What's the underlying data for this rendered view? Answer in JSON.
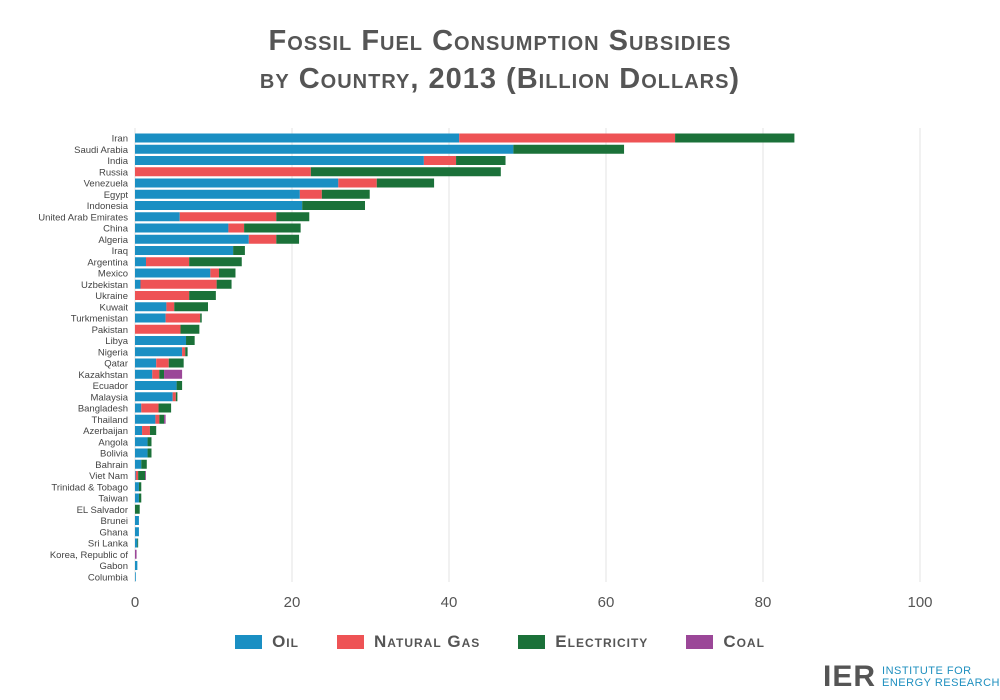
{
  "title": {
    "line1": "Fossil Fuel Consumption Subsidies",
    "line2": "by Country, 2013 (Billion Dollars)"
  },
  "legend": [
    {
      "name": "Oil",
      "color": "#1a8fc3"
    },
    {
      "name": "Natural Gas",
      "color": "#ee5355"
    },
    {
      "name": "Electricity",
      "color": "#1b7139"
    },
    {
      "name": "Coal",
      "color": "#9b4798"
    }
  ],
  "logo": {
    "mark": "IER",
    "line1": "INSTITUTE FOR",
    "line2": "ENERGY RESEARCH"
  },
  "chart_data": {
    "type": "bar",
    "orientation": "horizontal",
    "stacked": true,
    "title": "Fossil Fuel Consumption Subsidies by Country, 2013 (Billion Dollars)",
    "xlim": [
      0,
      100
    ],
    "xticks": [
      0,
      20,
      40,
      60,
      80,
      100
    ],
    "grid": true,
    "legend_position": "bottom",
    "categories": [
      "Iran",
      "Saudi Arabia",
      "India",
      "Russia",
      "Venezuela",
      "Egypt",
      "Indonesia",
      "United Arab Emirates",
      "China",
      "Algeria",
      "Iraq",
      "Argentina",
      "Mexico",
      "Uzbekistan",
      "Ukraine",
      "Kuwait",
      "Turkmenistan",
      "Pakistan",
      "Libya",
      "Nigeria",
      "Qatar",
      "Kazakhstan",
      "Ecuador",
      "Malaysia",
      "Bangladesh",
      "Thailand",
      "Azerbaijan",
      "Angola",
      "Bolivia",
      "Bahrain",
      "Viet Nam",
      "Trinidad & Tobago",
      "Taiwan",
      "EL Salvador",
      "Brunei",
      "Ghana",
      "Sri Lanka",
      "Korea, Republic of",
      "Gabon",
      "Columbia"
    ],
    "series": [
      {
        "name": "Oil",
        "color": "#1a8fc3",
        "values": [
          41.3,
          48.2,
          36.8,
          0,
          25.9,
          21.0,
          21.3,
          5.7,
          11.9,
          14.5,
          12.5,
          1.4,
          9.6,
          0.7,
          0,
          4.0,
          3.9,
          0,
          6.5,
          6.0,
          2.7,
          2.2,
          5.3,
          4.8,
          0.8,
          2.6,
          0.9,
          1.6,
          1.6,
          0.8,
          0.1,
          0.5,
          0.5,
          0,
          0.5,
          0.5,
          0.3,
          0,
          0.3,
          0.1
        ]
      },
      {
        "name": "Natural Gas",
        "color": "#ee5355",
        "values": [
          27.5,
          0,
          4.1,
          22.4,
          4.9,
          2.8,
          0,
          12.3,
          2.0,
          3.5,
          0,
          5.5,
          1.1,
          9.7,
          6.9,
          1.0,
          4.4,
          5.8,
          0,
          0.4,
          1.6,
          0.9,
          0,
          0.4,
          2.2,
          0.5,
          1.0,
          0,
          0,
          0,
          0.3,
          0,
          0,
          0,
          0,
          0,
          0,
          0,
          0,
          0
        ]
      },
      {
        "name": "Electricity",
        "color": "#1b7139",
        "values": [
          15.2,
          14.1,
          6.3,
          24.2,
          7.3,
          6.1,
          8.0,
          4.2,
          7.2,
          2.9,
          1.5,
          6.7,
          2.1,
          1.9,
          3.4,
          4.3,
          0.2,
          2.4,
          1.1,
          0.3,
          1.9,
          0.6,
          0.7,
          0.2,
          1.6,
          0.6,
          0.8,
          0.5,
          0.5,
          0.7,
          0.9,
          0.3,
          0.3,
          0.6,
          0,
          0,
          0.1,
          0,
          0,
          0
        ]
      },
      {
        "name": "Coal",
        "color": "#9b4798",
        "values": [
          0,
          0,
          0,
          0,
          0,
          0,
          0,
          0,
          0,
          0,
          0,
          0,
          0,
          0,
          0,
          0,
          0,
          0,
          0,
          0,
          0,
          2.3,
          0,
          0,
          0,
          0.2,
          0,
          0,
          0,
          0,
          0.1,
          0,
          0,
          0,
          0,
          0,
          0,
          0.2,
          0,
          0
        ]
      }
    ]
  }
}
